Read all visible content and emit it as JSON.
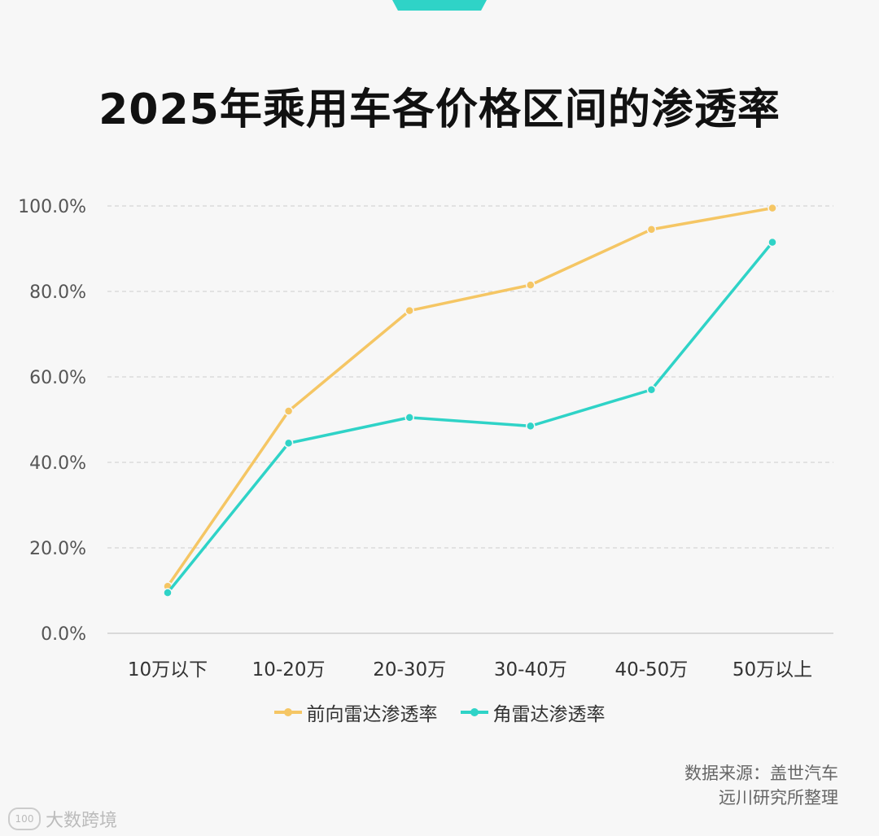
{
  "title": "2025年乘用车各价格区间的渗透率",
  "source": {
    "line1": "数据来源：盖世汽车",
    "line2": "远川研究所整理"
  },
  "watermark": {
    "text": "大数跨境",
    "logo": "100"
  },
  "colors": {
    "front": "#f5c664",
    "corner": "#2fd3c7",
    "accent": "#2fd3c7"
  },
  "chart_data": {
    "type": "line",
    "title": "2025年乘用车各价格区间的渗透率",
    "categories": [
      "10万以下",
      "10-20万",
      "20-30万",
      "30-40万",
      "40-50万",
      "50万以上"
    ],
    "yticks": [
      "0.0%",
      "20.0%",
      "40.0%",
      "60.0%",
      "80.0%",
      "100.0%"
    ],
    "ylim": [
      0,
      100
    ],
    "grid": true,
    "legend_position": "bottom",
    "series": [
      {
        "name": "前向雷达渗透率",
        "color": "#f5c664",
        "values": [
          11,
          52,
          75.5,
          81.5,
          94.5,
          99.5
        ]
      },
      {
        "name": "角雷达渗透率",
        "color": "#2fd3c7",
        "values": [
          9.5,
          44.5,
          50.5,
          48.5,
          57,
          91.5
        ]
      }
    ]
  }
}
